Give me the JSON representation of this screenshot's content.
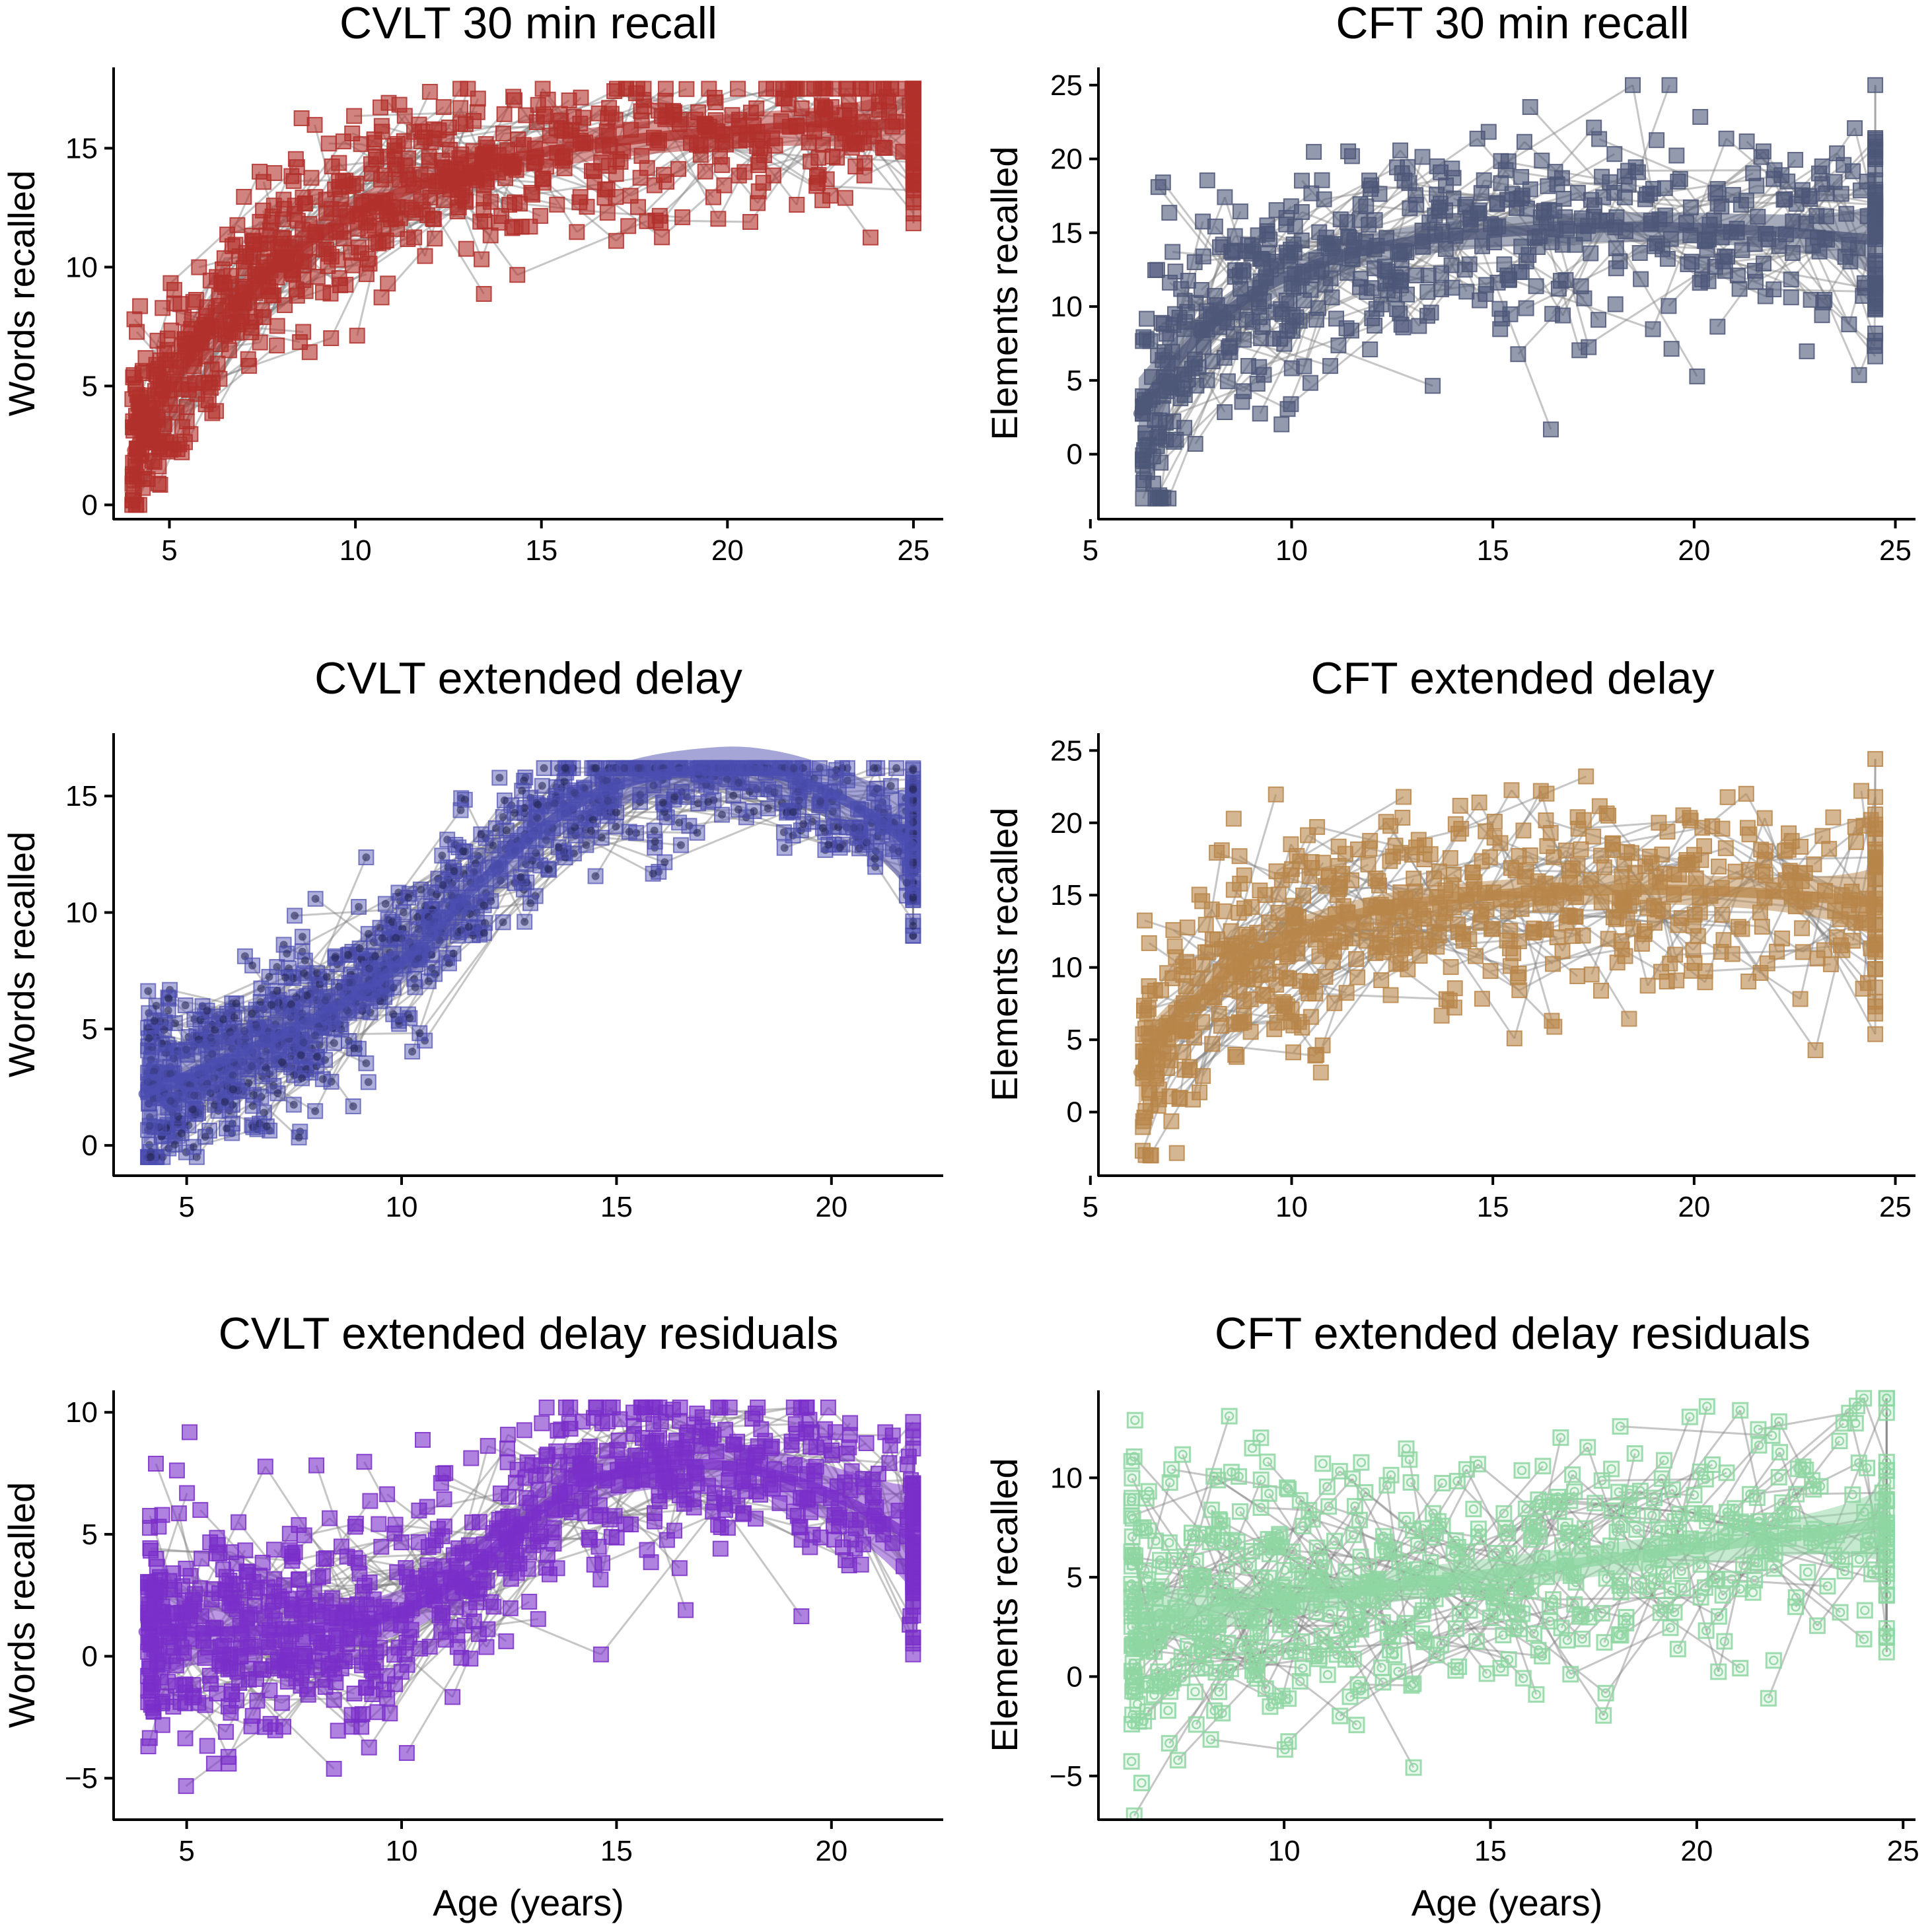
{
  "figure": {
    "panels": [
      {
        "id": "cvlt-30",
        "title": "CVLT 30 min recall",
        "ylabel": "Words recalled",
        "xlabel": "",
        "xlim": [
          3.5,
          25.8
        ],
        "ylim": [
          -0.6,
          18.4
        ],
        "xticks": [
          5,
          10,
          15,
          20,
          25
        ],
        "yticks": [
          0,
          5,
          10,
          15
        ],
        "color": "#b2302c",
        "point_shape": "square",
        "point_style": "solid",
        "fit": {
          "type": "saturating",
          "ymin": 2.3,
          "ymax": 16.2,
          "x0": 4.0,
          "k": 0.21,
          "band": 0.7,
          "xstart": 4.0,
          "xend": 25.0
        },
        "scatter": {
          "n": 430,
          "xmin": 4.0,
          "xmax": 25.0,
          "xdist": "young",
          "noise": 2.0,
          "ylo": 0,
          "yhi": 17.5
        }
      },
      {
        "id": "cft-30",
        "title": "CFT 30 min recall",
        "ylabel": "Elements recalled",
        "xlabel": "",
        "xlim": [
          5.2,
          25.5
        ],
        "ylim": [
          -4.4,
          26.2
        ],
        "xticks": [
          5,
          10,
          15,
          20,
          25
        ],
        "yticks": [
          0,
          5,
          10,
          15,
          20,
          25
        ],
        "color": "#4d5778",
        "point_shape": "square",
        "point_style": "solid",
        "fit": {
          "type": "hump",
          "ymin": 3.2,
          "ymax": 15.6,
          "x0": 6.3,
          "k": 0.35,
          "decay": 0.0032,
          "xpeak": 17.0,
          "band": 1.0,
          "xstart": 6.2,
          "xend": 24.5
        },
        "scatter": {
          "n": 330,
          "xmin": 6.3,
          "xmax": 24.5,
          "xdist": "young",
          "noise": 4.2,
          "ylo": -3,
          "yhi": 25
        }
      },
      {
        "id": "cvlt-ext",
        "title": "CVLT extended delay",
        "ylabel": "Words recalled",
        "xlabel": "",
        "xlim": [
          3.3,
          22.6
        ],
        "ylim": [
          -1.3,
          17.7
        ],
        "xticks": [
          5,
          10,
          15,
          20
        ],
        "yticks": [
          0,
          5,
          10,
          15
        ],
        "color": "#4b4db0",
        "point_shape": "square",
        "point_style": "circle-in-square",
        "fit": {
          "type": "sigmoid-drop",
          "base": 2.2,
          "slope1": 0.75,
          "rise": 8.5,
          "mid": 12.3,
          "w": 1.25,
          "peakx": 17.3,
          "drop": 0.055,
          "band": 0.9,
          "xstart": 4.0,
          "xend": 21.9
        },
        "scatter": {
          "n": 470,
          "xmin": 4.1,
          "xmax": 21.9,
          "xdist": "young",
          "noise": 1.9,
          "ylo": -0.5,
          "yhi": 16.2
        }
      },
      {
        "id": "cft-ext",
        "title": "CFT extended delay",
        "ylabel": "Elements recalled",
        "xlabel": "",
        "xlim": [
          5.2,
          25.5
        ],
        "ylim": [
          -4.4,
          26.2
        ],
        "xticks": [
          5,
          10,
          15,
          20,
          25
        ],
        "yticks": [
          0,
          5,
          10,
          15,
          20,
          25
        ],
        "color": "#b8864a",
        "point_shape": "square",
        "point_style": "solid",
        "fit": {
          "type": "hump",
          "ymin": 3.2,
          "ymax": 15.6,
          "x0": 6.3,
          "k": 0.35,
          "decay": 0.0032,
          "xpeak": 17.0,
          "band": 1.0,
          "xstart": 6.2,
          "xend": 24.5
        },
        "scatter": {
          "n": 330,
          "xmin": 6.3,
          "xmax": 24.5,
          "xdist": "young",
          "noise": 4.2,
          "ylo": -3,
          "yhi": 25
        }
      },
      {
        "id": "cvlt-res",
        "title": "CVLT extended delay residuals",
        "ylabel": "Words recalled",
        "xlabel": "Age (years)",
        "xlim": [
          3.3,
          22.6
        ],
        "ylim": [
          -6.7,
          10.9
        ],
        "xticks": [
          5,
          10,
          15,
          20
        ],
        "yticks": [
          -5,
          0,
          5,
          10
        ],
        "ytick_labels": [
          "−5",
          "0",
          "5",
          "10"
        ],
        "color": "#7a2fc9",
        "point_shape": "square",
        "point_style": "solid",
        "fit": {
          "type": "sigmoid-drop",
          "base": 1.0,
          "slope1": 0.0,
          "rise": 7.0,
          "mid": 12.2,
          "w": 1.1,
          "peakx": 16.4,
          "drop": 0.035,
          "band": 0.9,
          "xstart": 4.0,
          "xend": 21.9
        },
        "scatter": {
          "n": 470,
          "xmin": 4.1,
          "xmax": 21.9,
          "xdist": "young",
          "noise": 2.3,
          "ylo": -6,
          "yhi": 10.2
        }
      },
      {
        "id": "cft-res",
        "title": "CFT extended delay residuals",
        "ylabel": "Elements recalled",
        "xlabel": "Age (years)",
        "xlim": [
          5.5,
          25.3
        ],
        "ylim": [
          -7.2,
          14.4
        ],
        "xticks": [
          10,
          15,
          20,
          25
        ],
        "yticks": [
          -5,
          0,
          5,
          10
        ],
        "ytick_labels": [
          "−5",
          "0",
          "5",
          "10"
        ],
        "color": "#8ed6a2",
        "point_shape": "square",
        "point_style": "open-circle-in-square",
        "fit": {
          "type": "linear",
          "a": 2.9,
          "b": 0.26,
          "x0": 6.3,
          "band": 0.8,
          "xstart": 6.3,
          "xend": 24.6
        },
        "scatter": {
          "n": 330,
          "xmin": 6.3,
          "xmax": 24.6,
          "xdist": "young",
          "noise": 3.6,
          "ylo": -7,
          "yhi": 14
        }
      }
    ]
  },
  "chart_data": [
    {
      "type": "scatter",
      "title": "CVLT 30 min recall",
      "xlabel": "",
      "ylabel": "Words recalled",
      "xlim": [
        3.5,
        25.8
      ],
      "ylim": [
        -0.6,
        18.4
      ],
      "series": [
        {
          "name": "",
          "kind": "fit",
          "x": [
            4,
            5,
            6,
            7,
            8,
            9,
            10,
            11,
            12,
            13,
            15,
            17,
            19,
            21,
            23,
            25
          ],
          "y": [
            2.3,
            4.9,
            7.0,
            8.8,
            10.2,
            11.4,
            12.3,
            13.0,
            13.6,
            14.1,
            14.8,
            15.3,
            15.6,
            15.8,
            16.0,
            16.1
          ]
        }
      ],
      "grid": false
    },
    {
      "type": "scatter",
      "title": "CFT 30 min recall",
      "xlabel": "",
      "ylabel": "Elements recalled",
      "xlim": [
        5.2,
        25.5
      ],
      "ylim": [
        -4.4,
        26.2
      ],
      "series": [
        {
          "name": "",
          "kind": "fit",
          "x": [
            6.2,
            7,
            8,
            9,
            10,
            11,
            12,
            14,
            16,
            18,
            20,
            22,
            24.5
          ],
          "y": [
            3.2,
            6.2,
            8.9,
            10.8,
            12.2,
            13.2,
            13.9,
            14.8,
            15.2,
            15.3,
            15.0,
            14.5,
            13.6
          ]
        }
      ],
      "grid": false
    },
    {
      "type": "scatter",
      "title": "CVLT extended delay",
      "xlabel": "",
      "ylabel": "Words recalled",
      "xlim": [
        3.3,
        22.6
      ],
      "ylim": [
        -1.3,
        17.7
      ],
      "series": [
        {
          "name": "",
          "kind": "fit",
          "x": [
            4,
            5,
            6,
            7,
            8,
            9,
            10,
            11,
            12,
            13,
            14,
            15,
            16,
            17,
            18,
            19,
            20,
            21,
            21.9
          ],
          "y": [
            2.2,
            3.0,
            3.8,
            4.5,
            5.3,
            6.0,
            6.9,
            8.4,
            10.6,
            12.7,
            14.2,
            15.2,
            15.8,
            16.0,
            15.9,
            15.7,
            15.4,
            14.9,
            14.4
          ]
        }
      ],
      "grid": false
    },
    {
      "type": "scatter",
      "title": "CFT extended delay",
      "xlabel": "",
      "ylabel": "Elements recalled",
      "xlim": [
        5.2,
        25.5
      ],
      "ylim": [
        -4.4,
        26.2
      ],
      "series": [
        {
          "name": "",
          "kind": "fit",
          "x": [
            6.2,
            7,
            8,
            9,
            10,
            11,
            12,
            14,
            16,
            18,
            20,
            22,
            24.5
          ],
          "y": [
            3.2,
            6.2,
            8.9,
            10.8,
            12.2,
            13.2,
            13.9,
            14.8,
            15.2,
            15.3,
            15.0,
            14.5,
            13.6
          ]
        }
      ],
      "grid": false
    },
    {
      "type": "scatter",
      "title": "CVLT extended delay residuals",
      "xlabel": "Age (years)",
      "ylabel": "Words recalled",
      "xlim": [
        3.3,
        22.6
      ],
      "ylim": [
        -6.7,
        10.9
      ],
      "series": [
        {
          "name": "",
          "kind": "fit",
          "x": [
            4,
            6,
            8,
            10,
            11,
            12,
            13,
            14,
            15,
            16,
            17,
            18,
            19,
            20,
            21,
            21.9
          ],
          "y": [
            1.0,
            1.0,
            1.0,
            1.2,
            2.0,
            3.8,
            5.8,
            7.0,
            7.6,
            7.9,
            7.9,
            7.7,
            7.4,
            7.0,
            6.6,
            6.1
          ]
        }
      ],
      "grid": false
    },
    {
      "type": "scatter",
      "title": "CFT extended delay residuals",
      "xlabel": "Age (years)",
      "ylabel": "Elements recalled",
      "xlim": [
        5.5,
        25.3
      ],
      "ylim": [
        -7.2,
        14.4
      ],
      "series": [
        {
          "name": "",
          "kind": "fit",
          "x": [
            6.3,
            10,
            15,
            20,
            24.6
          ],
          "y": [
            2.9,
            3.9,
            5.2,
            6.4,
            7.7
          ]
        }
      ],
      "grid": false
    }
  ]
}
